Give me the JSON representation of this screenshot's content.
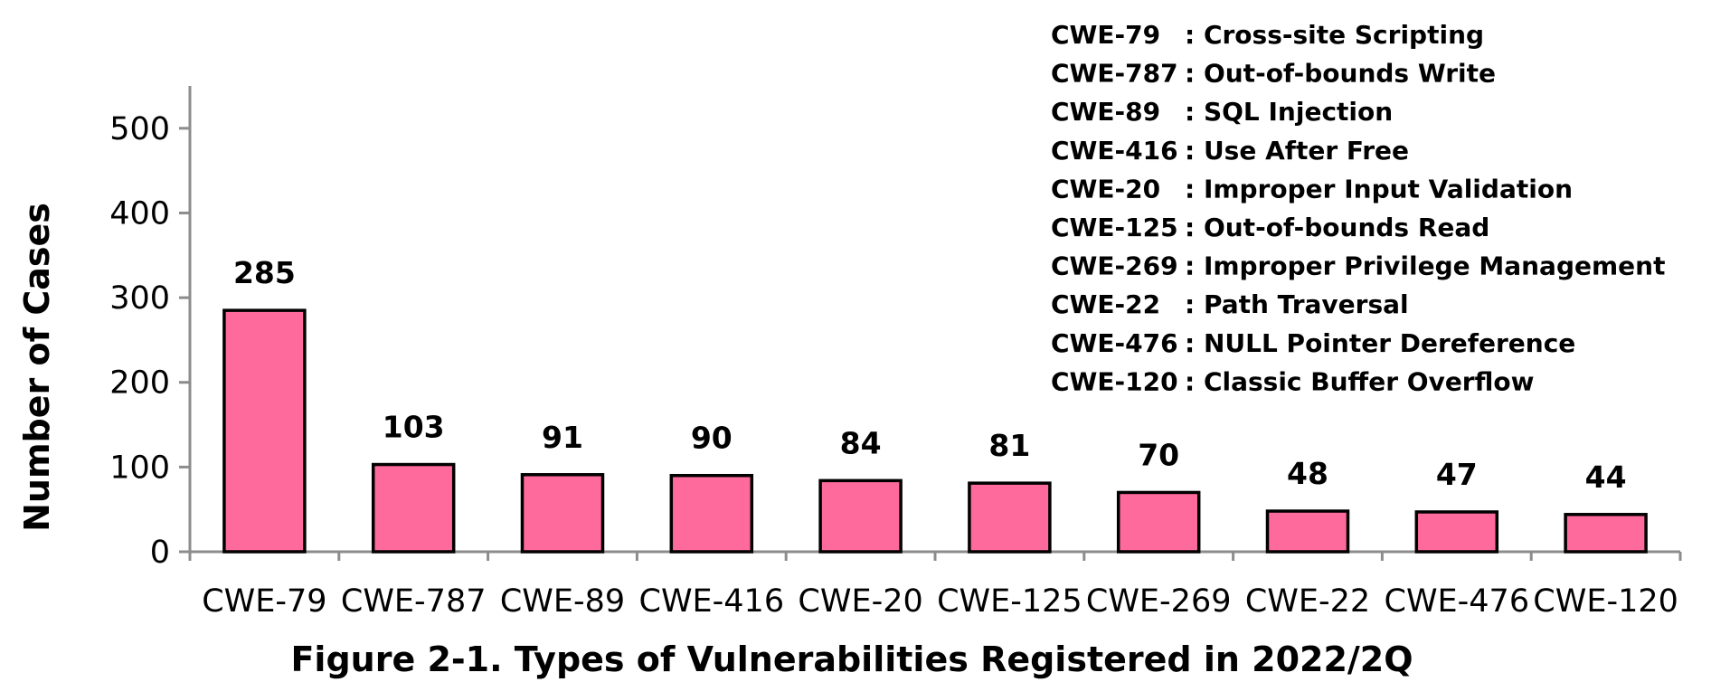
{
  "chart_data": {
    "type": "bar",
    "categories": [
      "CWE-79",
      "CWE-787",
      "CWE-89",
      "CWE-416",
      "CWE-20",
      "CWE-125",
      "CWE-269",
      "CWE-22",
      "CWE-476",
      "CWE-120"
    ],
    "values": [
      285,
      103,
      91,
      90,
      84,
      81,
      70,
      48,
      47,
      44
    ],
    "data_labels": [
      "285",
      "103",
      "91",
      "90",
      "84",
      "81",
      "70",
      "48",
      "47",
      "44"
    ],
    "ylabel": "Number of Cases",
    "xlabel": "",
    "ylim": [
      0,
      550
    ],
    "yticks": [
      0,
      100,
      200,
      300,
      400,
      500
    ],
    "ytick_labels": [
      "0",
      "100",
      "200",
      "300",
      "400",
      "500"
    ],
    "grid": false,
    "bar_color": "#ff6a9c",
    "legend_placement": "top-right",
    "legend": [
      {
        "code": "CWE-79",
        "desc": ": Cross-site Scripting"
      },
      {
        "code": "CWE-787",
        "desc": ": Out-of-bounds Write"
      },
      {
        "code": "CWE-89",
        "desc": ": SQL Injection"
      },
      {
        "code": "CWE-416",
        "desc": ": Use After Free"
      },
      {
        "code": "CWE-20",
        "desc": ": Improper Input Validation"
      },
      {
        "code": "CWE-125",
        "desc": ": Out-of-bounds Read"
      },
      {
        "code": "CWE-269",
        "desc": ": Improper Privilege Management"
      },
      {
        "code": "CWE-22",
        "desc": ": Path Traversal"
      },
      {
        "code": "CWE-476",
        "desc": ": NULL Pointer Dereference"
      },
      {
        "code": "CWE-120",
        "desc": ": Classic Buffer Overflow"
      }
    ],
    "caption": "Figure 2-1. Types of Vulnerabilities Registered in 2022/2Q"
  }
}
